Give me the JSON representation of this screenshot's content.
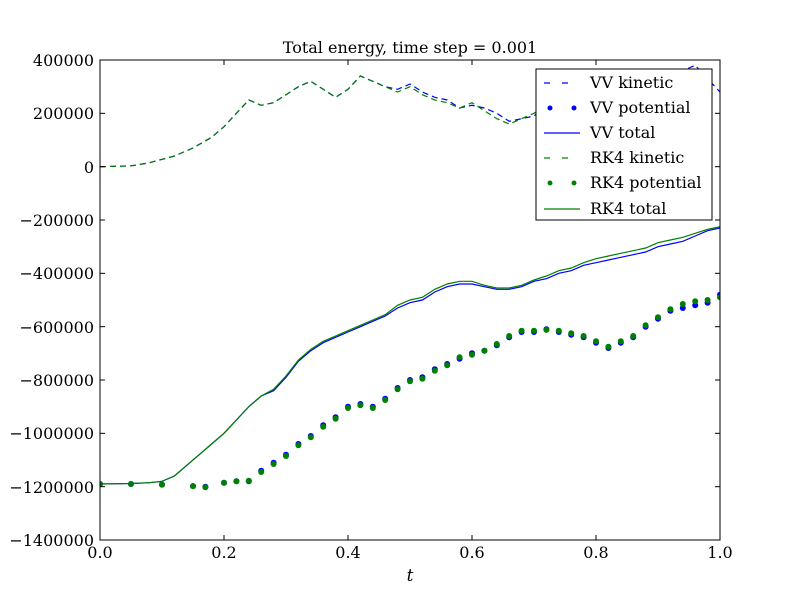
{
  "chart_data": {
    "type": "line",
    "title": "Total energy, time step = 0.001",
    "xlabel": "t",
    "ylabel": "",
    "xlim": [
      0.0,
      1.0
    ],
    "ylim": [
      -1400000,
      400000
    ],
    "x_ticks": [
      "0.0",
      "0.2",
      "0.4",
      "0.6",
      "0.8",
      "1.0"
    ],
    "y_ticks": [
      "400000",
      "200000",
      "0",
      "−200000",
      "−400000",
      "−600000",
      "−800000",
      "−1000000",
      "−1200000",
      "−1400000"
    ],
    "legend_position": "top-right",
    "colors": {
      "vv": "#0000ff",
      "rk4": "#008000"
    },
    "series": [
      {
        "name": "VV kinetic",
        "color": "#0000ff",
        "style": "dashed",
        "x": [
          0.0,
          0.05,
          0.08,
          0.12,
          0.15,
          0.18,
          0.2,
          0.22,
          0.24,
          0.26,
          0.28,
          0.3,
          0.32,
          0.34,
          0.36,
          0.38,
          0.4,
          0.42,
          0.44,
          0.46,
          0.48,
          0.5,
          0.52,
          0.54,
          0.56,
          0.58,
          0.6,
          0.62,
          0.64,
          0.66,
          0.68,
          0.7,
          0.72,
          0.74,
          0.76,
          0.78,
          0.8,
          0.82,
          0.84,
          0.86,
          0.88,
          0.9,
          0.92,
          0.94,
          0.96,
          0.98,
          1.0
        ],
        "y": [
          0,
          3000,
          15000,
          40000,
          70000,
          110000,
          150000,
          200000,
          250000,
          230000,
          240000,
          270000,
          300000,
          320000,
          290000,
          260000,
          290000,
          340000,
          320000,
          300000,
          290000,
          310000,
          280000,
          260000,
          250000,
          220000,
          230000,
          220000,
          200000,
          170000,
          180000,
          190000,
          230000,
          240000,
          220000,
          210000,
          250000,
          280000,
          300000,
          320000,
          320000,
          330000,
          350000,
          360000,
          380000,
          330000,
          280000
        ]
      },
      {
        "name": "VV potential",
        "color": "#0000ff",
        "style": "dots",
        "x": [
          0.0,
          0.05,
          0.1,
          0.15,
          0.17,
          0.2,
          0.22,
          0.24,
          0.26,
          0.28,
          0.3,
          0.32,
          0.34,
          0.36,
          0.38,
          0.4,
          0.42,
          0.44,
          0.46,
          0.48,
          0.5,
          0.52,
          0.54,
          0.56,
          0.58,
          0.6,
          0.62,
          0.64,
          0.66,
          0.68,
          0.7,
          0.72,
          0.74,
          0.76,
          0.78,
          0.8,
          0.82,
          0.84,
          0.86,
          0.88,
          0.9,
          0.92,
          0.94,
          0.96,
          0.98,
          1.0
        ],
        "y": [
          -1190000,
          -1190000,
          -1192000,
          -1198000,
          -1200000,
          -1185000,
          -1180000,
          -1180000,
          -1140000,
          -1110000,
          -1080000,
          -1040000,
          -1010000,
          -970000,
          -940000,
          -900000,
          -890000,
          -900000,
          -870000,
          -830000,
          -800000,
          -790000,
          -760000,
          -740000,
          -720000,
          -700000,
          -690000,
          -670000,
          -640000,
          -620000,
          -620000,
          -610000,
          -620000,
          -630000,
          -640000,
          -660000,
          -680000,
          -660000,
          -640000,
          -600000,
          -570000,
          -540000,
          -530000,
          -520000,
          -510000,
          -480000
        ]
      },
      {
        "name": "VV total",
        "color": "#0000ff",
        "style": "solid",
        "x": [
          0.0,
          0.05,
          0.08,
          0.1,
          0.12,
          0.14,
          0.16,
          0.18,
          0.2,
          0.22,
          0.24,
          0.26,
          0.28,
          0.3,
          0.32,
          0.34,
          0.36,
          0.38,
          0.4,
          0.42,
          0.44,
          0.46,
          0.48,
          0.5,
          0.52,
          0.54,
          0.56,
          0.58,
          0.6,
          0.62,
          0.64,
          0.66,
          0.68,
          0.7,
          0.72,
          0.74,
          0.76,
          0.78,
          0.8,
          0.82,
          0.84,
          0.86,
          0.88,
          0.9,
          0.92,
          0.94,
          0.96,
          0.98,
          1.0
        ],
        "y": [
          -1190000,
          -1188000,
          -1185000,
          -1180000,
          -1160000,
          -1120000,
          -1080000,
          -1040000,
          -1000000,
          -950000,
          -900000,
          -860000,
          -840000,
          -790000,
          -730000,
          -690000,
          -660000,
          -640000,
          -620000,
          -600000,
          -580000,
          -560000,
          -530000,
          -510000,
          -500000,
          -470000,
          -450000,
          -440000,
          -440000,
          -450000,
          -460000,
          -460000,
          -450000,
          -430000,
          -420000,
          -400000,
          -390000,
          -370000,
          -360000,
          -350000,
          -340000,
          -330000,
          -320000,
          -300000,
          -290000,
          -280000,
          -260000,
          -240000,
          -230000
        ]
      },
      {
        "name": "RK4 kinetic",
        "color": "#008000",
        "style": "dashed",
        "x": [
          0.0,
          0.05,
          0.08,
          0.12,
          0.15,
          0.18,
          0.2,
          0.22,
          0.24,
          0.26,
          0.28,
          0.3,
          0.32,
          0.34,
          0.36,
          0.38,
          0.4,
          0.42,
          0.44,
          0.46,
          0.48,
          0.5,
          0.52,
          0.54,
          0.56,
          0.58,
          0.6,
          0.62,
          0.64,
          0.66,
          0.68,
          0.7,
          0.72,
          0.74,
          0.76,
          0.78,
          0.8,
          0.82,
          0.84,
          0.86
        ],
        "y": [
          0,
          3000,
          15000,
          40000,
          70000,
          110000,
          150000,
          200000,
          250000,
          230000,
          240000,
          270000,
          300000,
          320000,
          290000,
          260000,
          290000,
          340000,
          320000,
          300000,
          280000,
          300000,
          270000,
          250000,
          240000,
          220000,
          240000,
          210000,
          180000,
          160000,
          180000,
          200000,
          230000,
          240000,
          230000,
          210000,
          240000,
          270000,
          290000,
          300000
        ]
      },
      {
        "name": "RK4 potential",
        "color": "#008000",
        "style": "dots",
        "x": [
          0.0,
          0.05,
          0.1,
          0.15,
          0.17,
          0.2,
          0.22,
          0.24,
          0.26,
          0.28,
          0.3,
          0.32,
          0.34,
          0.36,
          0.38,
          0.4,
          0.42,
          0.44,
          0.46,
          0.48,
          0.5,
          0.52,
          0.54,
          0.56,
          0.58,
          0.6,
          0.62,
          0.64,
          0.66,
          0.68,
          0.7,
          0.72,
          0.74,
          0.76,
          0.78,
          0.8,
          0.82,
          0.84,
          0.86,
          0.88,
          0.9,
          0.92,
          0.94,
          0.96,
          0.98,
          1.0
        ],
        "y": [
          -1190000,
          -1190000,
          -1193000,
          -1198000,
          -1202000,
          -1186000,
          -1180000,
          -1178000,
          -1145000,
          -1115000,
          -1085000,
          -1045000,
          -1015000,
          -975000,
          -945000,
          -905000,
          -895000,
          -905000,
          -875000,
          -835000,
          -805000,
          -795000,
          -765000,
          -745000,
          -715000,
          -705000,
          -690000,
          -665000,
          -635000,
          -615000,
          -615000,
          -612000,
          -615000,
          -625000,
          -635000,
          -655000,
          -675000,
          -655000,
          -635000,
          -595000,
          -565000,
          -535000,
          -515000,
          -505000,
          -500000,
          -490000
        ]
      },
      {
        "name": "RK4 total",
        "color": "#008000",
        "style": "solid",
        "x": [
          0.0,
          0.05,
          0.08,
          0.1,
          0.12,
          0.14,
          0.16,
          0.18,
          0.2,
          0.22,
          0.24,
          0.26,
          0.28,
          0.3,
          0.32,
          0.34,
          0.36,
          0.38,
          0.4,
          0.42,
          0.44,
          0.46,
          0.48,
          0.5,
          0.52,
          0.54,
          0.56,
          0.58,
          0.6,
          0.62,
          0.64,
          0.66,
          0.68,
          0.7,
          0.72,
          0.74,
          0.76,
          0.78,
          0.8,
          0.82,
          0.84,
          0.86,
          0.88,
          0.9,
          0.92,
          0.94,
          0.96,
          0.98,
          1.0
        ],
        "y": [
          -1190000,
          -1188000,
          -1185000,
          -1180000,
          -1160000,
          -1120000,
          -1080000,
          -1040000,
          -1000000,
          -950000,
          -900000,
          -860000,
          -835000,
          -785000,
          -725000,
          -685000,
          -655000,
          -635000,
          -615000,
          -595000,
          -575000,
          -555000,
          -520000,
          -500000,
          -490000,
          -460000,
          -440000,
          -430000,
          -430000,
          -445000,
          -455000,
          -455000,
          -445000,
          -425000,
          -410000,
          -390000,
          -380000,
          -360000,
          -345000,
          -335000,
          -325000,
          -315000,
          -305000,
          -285000,
          -275000,
          -265000,
          -250000,
          -235000,
          -225000
        ]
      }
    ]
  }
}
